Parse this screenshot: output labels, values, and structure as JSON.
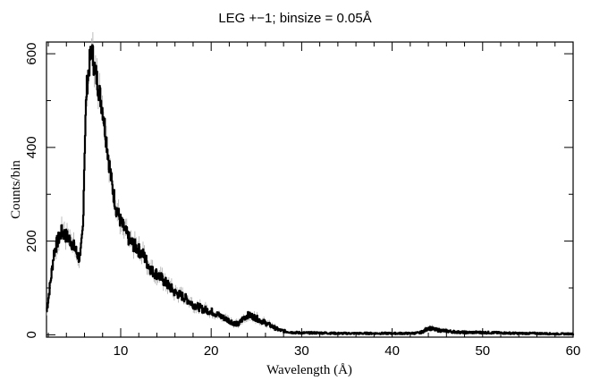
{
  "chart_data": {
    "type": "line",
    "title": "LEG +−1; binsize = 0.05Å",
    "xlabel": "Wavelength (Å)",
    "ylabel": "Counts/bin",
    "xlim": [
      1.8,
      60
    ],
    "ylim": [
      -5,
      625
    ],
    "xticks": [
      10,
      20,
      30,
      40,
      50,
      60
    ],
    "xtick_labels": [
      "10",
      "20",
      "30",
      "40",
      "50",
      "60"
    ],
    "yticks": [
      0,
      200,
      400,
      600
    ],
    "ytick_labels": [
      "0",
      "200",
      "400",
      "600"
    ],
    "grid": false,
    "legend": "none",
    "colors": {
      "line": "#000000",
      "error_bars": "#a0a0a0"
    },
    "series": [
      {
        "style": "histogram with error bars",
        "x": [
          1.8,
          2.2,
          2.6,
          3.0,
          3.5,
          4.0,
          4.5,
          5.0,
          5.5,
          5.8,
          6.0,
          6.2,
          6.4,
          6.6,
          6.8,
          7.0,
          7.2,
          7.5,
          8.0,
          8.5,
          9.0,
          9.5,
          10.0,
          10.5,
          11.0,
          11.5,
          12.0,
          12.5,
          13.0,
          13.5,
          14.0,
          14.5,
          15.0,
          16.0,
          17.0,
          18.0,
          19.0,
          20.0,
          21.0,
          22.0,
          22.5,
          23.0,
          23.5,
          24.0,
          24.5,
          25.0,
          25.5,
          26.0,
          26.5,
          27.0,
          27.5,
          28.0,
          29.0,
          30.0,
          32.0,
          34.0,
          36.0,
          38.0,
          40.0,
          42.0,
          43.0,
          43.5,
          44.0,
          44.5,
          45.0,
          45.5,
          46.0,
          47.0,
          48.0,
          50.0,
          52.0,
          54.0,
          56.0,
          58.0,
          60.0
        ],
        "values": [
          50,
          110,
          175,
          200,
          220,
          210,
          200,
          180,
          160,
          230,
          400,
          520,
          560,
          590,
          610,
          580,
          560,
          530,
          480,
          400,
          320,
          270,
          240,
          220,
          200,
          190,
          180,
          170,
          150,
          135,
          130,
          120,
          110,
          90,
          80,
          65,
          55,
          50,
          40,
          30,
          25,
          22,
          35,
          42,
          40,
          35,
          30,
          25,
          20,
          15,
          10,
          8,
          5,
          4,
          4,
          3,
          3,
          3,
          3,
          3,
          4,
          8,
          15,
          12,
          10,
          9,
          8,
          6,
          5,
          5,
          4,
          3,
          3,
          2,
          2
        ]
      }
    ]
  }
}
